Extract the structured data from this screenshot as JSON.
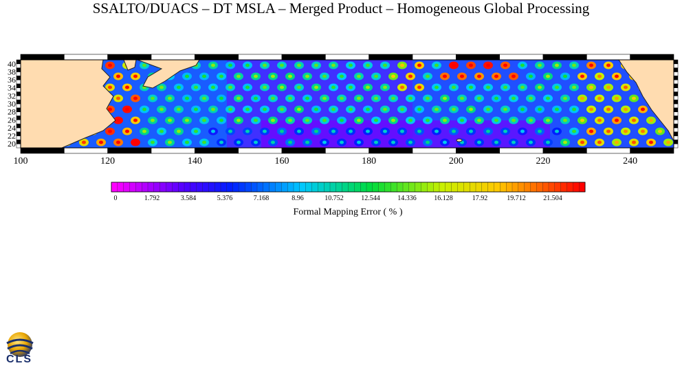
{
  "title": "SSALTO/DUACS – DT MSLA – Merged Product – Homogeneous Global Processing",
  "map": {
    "lon_range": [
      100,
      250
    ],
    "lat_range": [
      19,
      41
    ],
    "lon_ticks": [
      "100",
      "120",
      "140",
      "160",
      "180",
      "200",
      "220",
      "240"
    ],
    "lat_ticks": [
      "40",
      "38",
      "36",
      "34",
      "32",
      "30",
      "28",
      "26",
      "24",
      "22",
      "20"
    ],
    "land_color": "#ffdcb0",
    "ocean_base_color": "#4030ff"
  },
  "colorbar": {
    "ticks": [
      "0",
      "1.792",
      "3.584",
      "5.376",
      "7.168",
      "8.96",
      "10.752",
      "12.544",
      "14.336",
      "16.128",
      "17.92",
      "19.712",
      "21.504"
    ],
    "label": "Formal Mapping Error ( % )",
    "range": [
      0,
      23.296
    ]
  },
  "logo": {
    "text": "CLS"
  }
}
